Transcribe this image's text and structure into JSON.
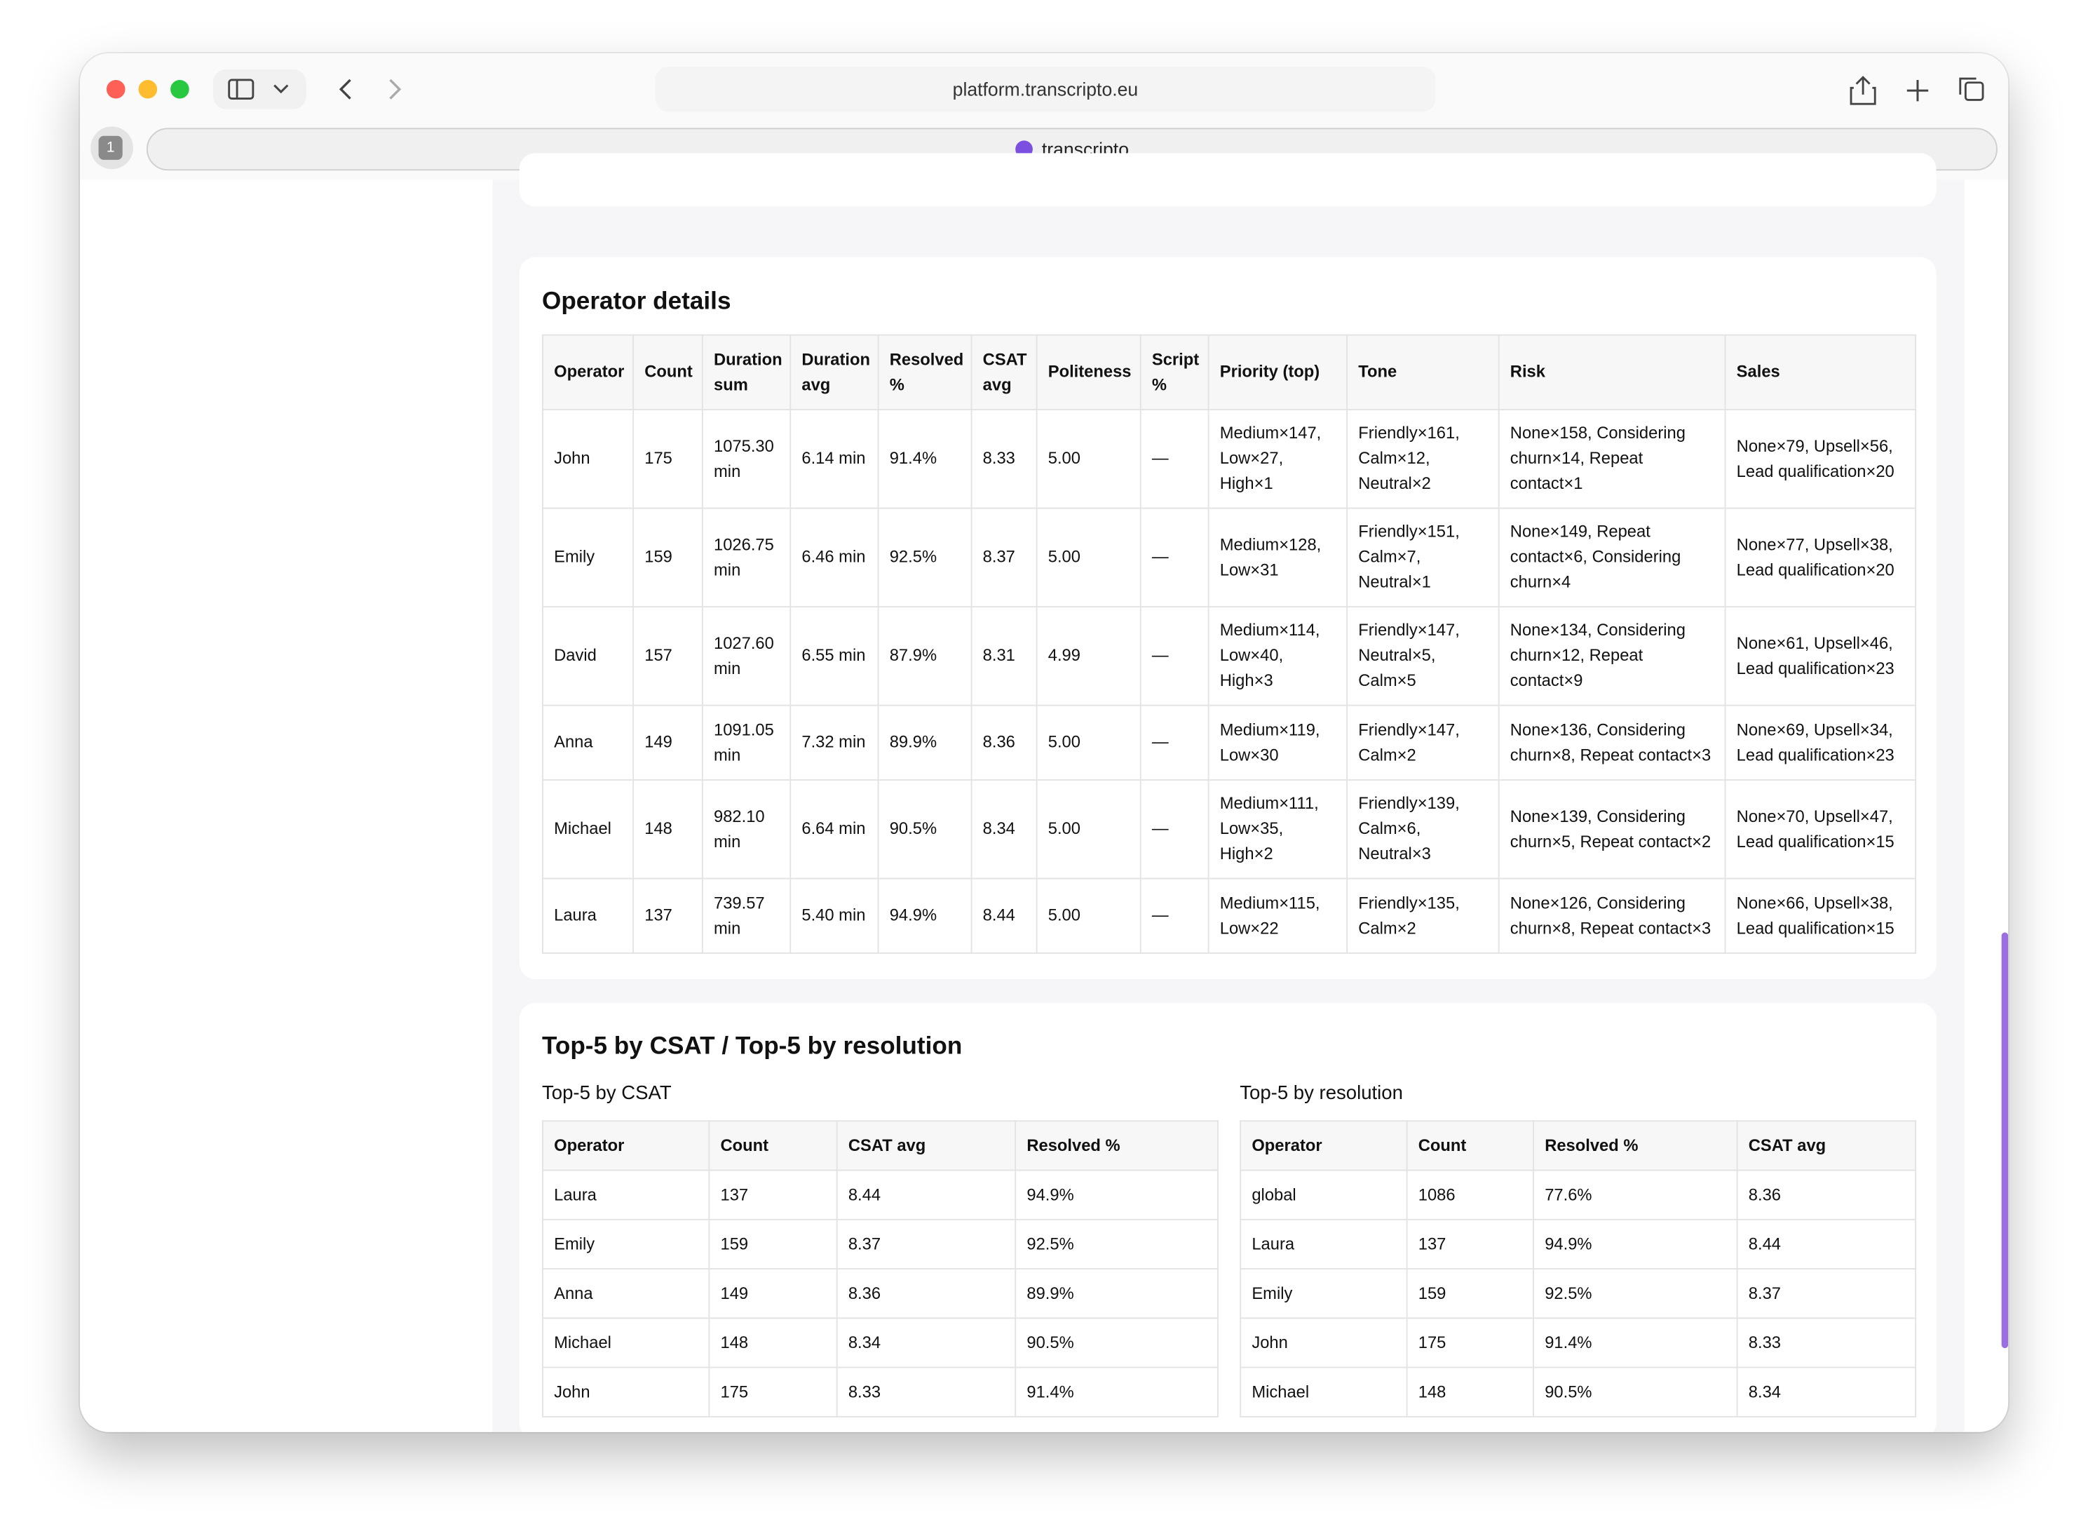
{
  "browser": {
    "url": "platform.transcripto.eu",
    "tab_count": "1",
    "tab_title": "transcripto"
  },
  "operator_details": {
    "title": "Operator details",
    "columns": [
      "Operator",
      "Count",
      "Duration sum",
      "Duration avg",
      "Resolved %",
      "CSAT avg",
      "Politeness",
      "Script %",
      "Priority (top)",
      "Tone",
      "Risk",
      "Sales"
    ],
    "rows": [
      [
        "John",
        "175",
        "1075.30 min",
        "6.14 min",
        "91.4%",
        "8.33",
        "5.00",
        "—",
        "Medium×147, Low×27, High×1",
        "Friendly×161, Calm×12, Neutral×2",
        "None×158, Considering churn×14, Repeat contact×1",
        "None×79, Upsell×56, Lead qualification×20"
      ],
      [
        "Emily",
        "159",
        "1026.75 min",
        "6.46 min",
        "92.5%",
        "8.37",
        "5.00",
        "—",
        "Medium×128, Low×31",
        "Friendly×151, Calm×7, Neutral×1",
        "None×149, Repeat contact×6, Considering churn×4",
        "None×77, Upsell×38, Lead qualification×20"
      ],
      [
        "David",
        "157",
        "1027.60 min",
        "6.55 min",
        "87.9%",
        "8.31",
        "4.99",
        "—",
        "Medium×114, Low×40, High×3",
        "Friendly×147, Neutral×5, Calm×5",
        "None×134, Considering churn×12, Repeat contact×9",
        "None×61, Upsell×46, Lead qualification×23"
      ],
      [
        "Anna",
        "149",
        "1091.05 min",
        "7.32 min",
        "89.9%",
        "8.36",
        "5.00",
        "—",
        "Medium×119, Low×30",
        "Friendly×147, Calm×2",
        "None×136, Considering churn×8, Repeat contact×3",
        "None×69, Upsell×34, Lead qualification×23"
      ],
      [
        "Michael",
        "148",
        "982.10 min",
        "6.64 min",
        "90.5%",
        "8.34",
        "5.00",
        "—",
        "Medium×111, Low×35, High×2",
        "Friendly×139, Calm×6, Neutral×3",
        "None×139, Considering churn×5, Repeat contact×2",
        "None×70, Upsell×47, Lead qualification×15"
      ],
      [
        "Laura",
        "137",
        "739.57 min",
        "5.40 min",
        "94.9%",
        "8.44",
        "5.00",
        "—",
        "Medium×115, Low×22",
        "Friendly×135, Calm×2",
        "None×126, Considering churn×8, Repeat contact×3",
        "None×66, Upsell×38, Lead qualification×15"
      ]
    ]
  },
  "top5": {
    "title": "Top-5 by CSAT / Top-5 by resolution",
    "tables": [
      {
        "caption": "Top-5 by CSAT",
        "columns": [
          "Operator",
          "Count",
          "CSAT avg",
          "Resolved %"
        ],
        "rows": [
          [
            "Laura",
            "137",
            "8.44",
            "94.9%"
          ],
          [
            "Emily",
            "159",
            "8.37",
            "92.5%"
          ],
          [
            "Anna",
            "149",
            "8.36",
            "89.9%"
          ],
          [
            "Michael",
            "148",
            "8.34",
            "90.5%"
          ],
          [
            "John",
            "175",
            "8.33",
            "91.4%"
          ]
        ]
      },
      {
        "caption": "Top-5 by resolution",
        "columns": [
          "Operator",
          "Count",
          "Resolved %",
          "CSAT avg"
        ],
        "rows": [
          [
            "global",
            "1086",
            "77.6%",
            "8.36"
          ],
          [
            "Laura",
            "137",
            "94.9%",
            "8.44"
          ],
          [
            "Emily",
            "159",
            "92.5%",
            "8.37"
          ],
          [
            "John",
            "175",
            "91.4%",
            "8.33"
          ],
          [
            "Michael",
            "148",
            "90.5%",
            "8.34"
          ]
        ]
      }
    ]
  }
}
